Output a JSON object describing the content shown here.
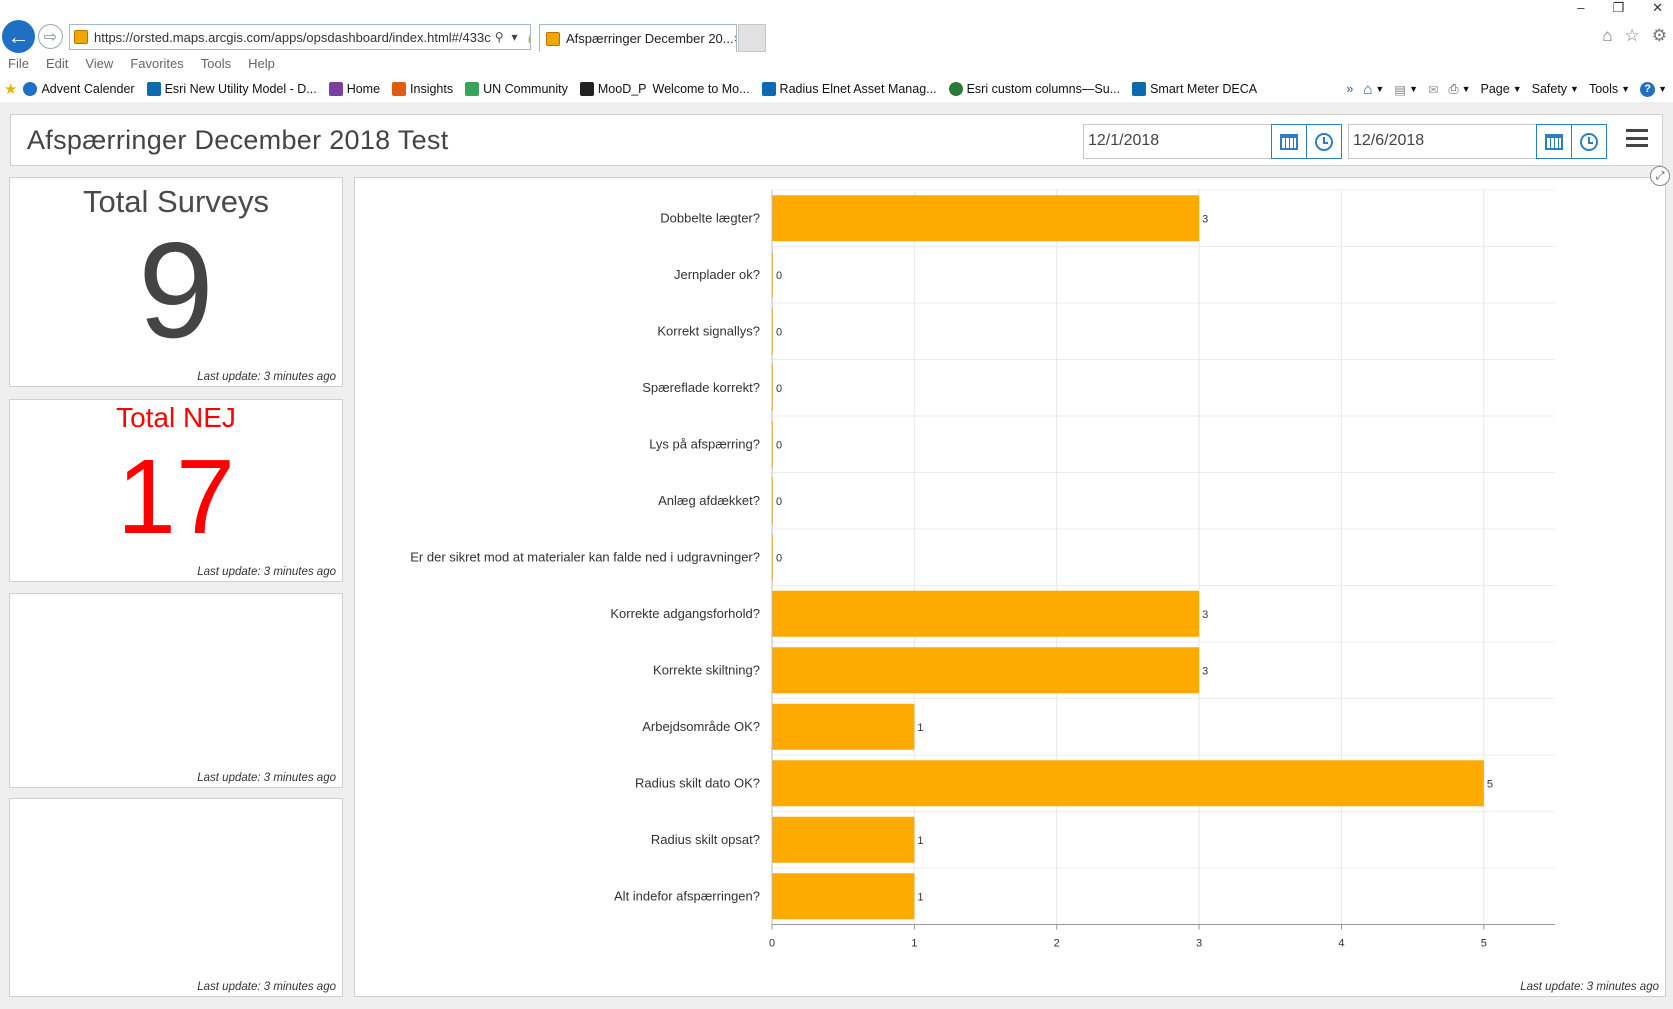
{
  "browser": {
    "url": "https://orsted.maps.arcgis.com/apps/opsdashboard/index.html#/433c",
    "tab_title": "Afspærringer December 20...",
    "tab_close": "×",
    "menu": [
      "File",
      "Edit",
      "View",
      "Favorites",
      "Tools",
      "Help"
    ],
    "favorites": [
      {
        "label": "Advent Calender",
        "icon": "power-icon",
        "color": "#1f6fc5"
      },
      {
        "label": "Esri New Utility Model - D...",
        "icon": "sharepoint-icon",
        "color": "#0b6ab0"
      },
      {
        "label": "Home",
        "icon": "page-icon",
        "color": "#7a3fa0"
      },
      {
        "label": "Insights",
        "icon": "insights-icon",
        "color": "#e05a10"
      },
      {
        "label": "UN Community",
        "icon": "community-icon",
        "color": "#3aa35a"
      },
      {
        "label": "MooD_P",
        "icon": "mood-icon",
        "color": "#222222"
      },
      {
        "label": "Welcome to Mo...",
        "icon": "none",
        "color": "#ffffff"
      },
      {
        "label": "Radius Elnet Asset Manag...",
        "icon": "sharepoint-icon",
        "color": "#0b6ab0"
      },
      {
        "label": "Esri custom columns—Su...",
        "icon": "globe-icon",
        "color": "#2a7a3a"
      },
      {
        "label": "Smart Meter DECA",
        "icon": "sharepoint-icon",
        "color": "#0b6ab0"
      }
    ],
    "cmd": {
      "page": "Page",
      "safety": "Safety",
      "tools": "Tools"
    },
    "more": "»"
  },
  "dashboard": {
    "title": "Afspærringer December 2018 Test",
    "date_from": "12/1/2018",
    "date_to": "12/6/2018"
  },
  "indicators": [
    {
      "title": "Total Surveys",
      "value": "9",
      "color": "#444444",
      "last_update": "Last update: 3 minutes ago"
    },
    {
      "title": "Total NEJ",
      "value": "17",
      "color": "#ff0000",
      "last_update": "Last update: 3 minutes ago"
    },
    {
      "title": "",
      "value": "",
      "color": "#444444",
      "last_update": "Last update: 3 minutes ago"
    },
    {
      "title": "",
      "value": "",
      "color": "#444444",
      "last_update": "Last update: 3 minutes ago"
    }
  ],
  "chart_last_update": "Last update: 3 minutes ago",
  "chart_data": {
    "type": "bar",
    "orientation": "horizontal",
    "categories": [
      "Dobbelte lægter?",
      "Jernplader ok?",
      "Korrekt signallys?",
      "Spæreflade korrekt?",
      "Lys på afspærring?",
      "Anlæg afdækket?",
      "Er der sikret mod at materialer kan falde ned i udgravninger?",
      "Korrekte adgangsforhold?",
      "Korrekte skiltning?",
      "Arbejdsområde OK?",
      "Radius skilt dato OK?",
      "Radius skilt opsat?",
      "Alt indefor afspærringen?"
    ],
    "values": [
      3,
      0,
      0,
      0,
      0,
      0,
      0,
      3,
      3,
      1,
      5,
      1,
      1
    ],
    "xticks": [
      0,
      1,
      2,
      3,
      4,
      5
    ],
    "xlim": [
      0,
      5.5
    ],
    "bar_color": "#ffaa00",
    "grid": true
  }
}
